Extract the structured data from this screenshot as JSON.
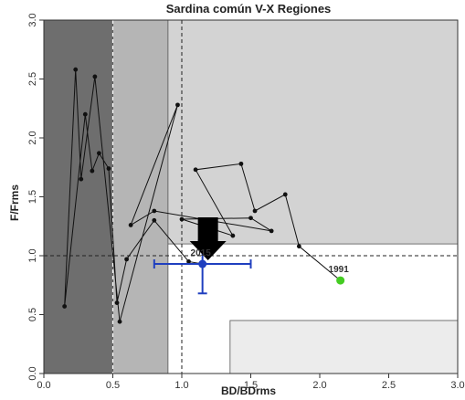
{
  "chart_data": {
    "type": "scatter",
    "title": "Sardina común V-X Regiones",
    "xlabel": "BD/BDrms",
    "ylabel": "F/Frms",
    "xlim": [
      0,
      3
    ],
    "ylim": [
      0,
      3
    ],
    "x_ticks": [
      "0.0",
      "0.5",
      "1.0",
      "1.5",
      "2.0",
      "2.5",
      "3.0"
    ],
    "y_ticks": [
      "0.0",
      "0.5",
      "1.0",
      "1.5",
      "2.0",
      "2.5",
      "3.0"
    ],
    "trajectory": [
      {
        "x": 2.15,
        "y": 0.79
      },
      {
        "x": 1.85,
        "y": 1.08
      },
      {
        "x": 1.75,
        "y": 1.52
      },
      {
        "x": 1.53,
        "y": 1.38
      },
      {
        "x": 1.43,
        "y": 1.78
      },
      {
        "x": 1.1,
        "y": 1.73
      },
      {
        "x": 1.37,
        "y": 1.17
      },
      {
        "x": 1.16,
        "y": 1.25
      },
      {
        "x": 1.0,
        "y": 1.31
      },
      {
        "x": 1.5,
        "y": 1.32
      },
      {
        "x": 1.65,
        "y": 1.21
      },
      {
        "x": 0.8,
        "y": 1.38
      },
      {
        "x": 0.63,
        "y": 1.26
      },
      {
        "x": 0.97,
        "y": 2.28
      },
      {
        "x": 0.55,
        "y": 0.44
      },
      {
        "x": 0.37,
        "y": 2.52
      },
      {
        "x": 0.27,
        "y": 1.65
      },
      {
        "x": 0.23,
        "y": 2.58
      },
      {
        "x": 0.15,
        "y": 0.57
      },
      {
        "x": 0.3,
        "y": 2.2
      },
      {
        "x": 0.35,
        "y": 1.72
      },
      {
        "x": 0.4,
        "y": 1.87
      },
      {
        "x": 0.47,
        "y": 1.74
      },
      {
        "x": 0.53,
        "y": 0.6
      },
      {
        "x": 0.6,
        "y": 0.97
      },
      {
        "x": 0.8,
        "y": 1.3
      },
      {
        "x": 1.05,
        "y": 0.95
      },
      {
        "x": 1.15,
        "y": 0.93
      }
    ],
    "labels": [
      {
        "text": "1991",
        "x": 2.15,
        "y": 0.79
      },
      {
        "text": "2015",
        "x": 1.15,
        "y": 0.93
      }
    ],
    "current_point": {
      "x": 1.15,
      "y": 0.93,
      "x_err": [
        0.8,
        1.5
      ],
      "y_err": [
        0.68,
        1.13
      ]
    },
    "first_point": {
      "x": 2.15,
      "y": 0.79
    },
    "reference_lines": {
      "bd_limit": 0.5,
      "bd_target": 1.0,
      "f_target": 1.0
    },
    "zones": [
      {
        "name": "collapse",
        "x": [
          0,
          0.5
        ],
        "y": [
          0,
          3
        ],
        "color": "#6e6e6e"
      },
      {
        "name": "overexploited-bd",
        "x": [
          0.5,
          0.9
        ],
        "y": [
          0,
          3
        ],
        "color": "#b5b5b5"
      },
      {
        "name": "overfishing",
        "x": [
          0.9,
          3
        ],
        "y": [
          1.1,
          3
        ],
        "color": "#d3d3d3"
      },
      {
        "name": "underexploited",
        "x": [
          1.35,
          3
        ],
        "y": [
          0,
          0.45
        ],
        "color": "#ececec"
      }
    ],
    "colors": {
      "trajectory": "#111111",
      "current": "#1f3fbf",
      "first": "#44cc22",
      "arrow": "#000000"
    },
    "grid": false
  }
}
